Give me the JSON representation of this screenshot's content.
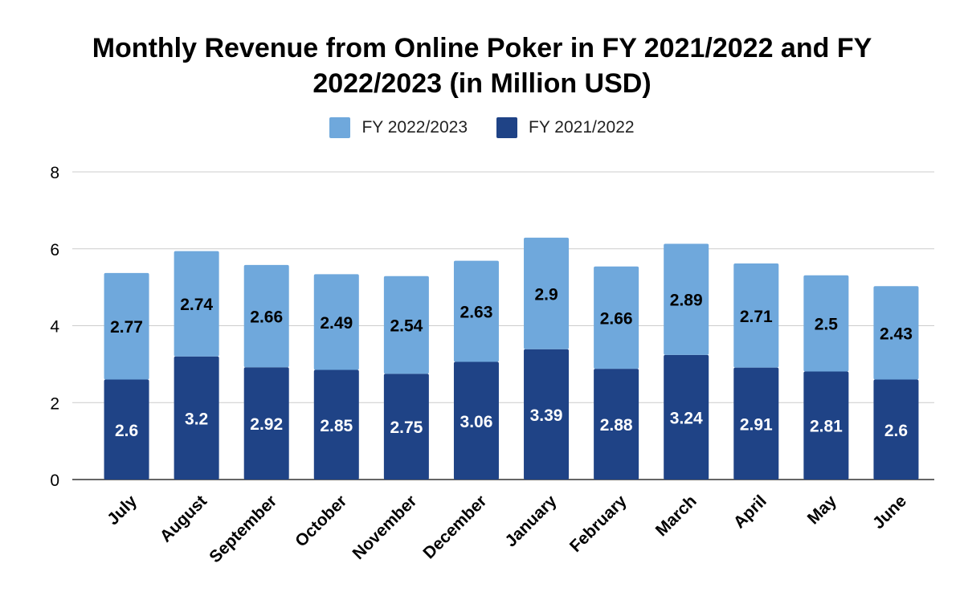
{
  "chart_data": {
    "type": "bar",
    "stacked": true,
    "title_lines": [
      "Monthly Revenue from Online Poker in FY 2021/2022 and FY",
      "2022/2023 (in Million USD)"
    ],
    "categories": [
      "July",
      "August",
      "September",
      "October",
      "November",
      "December",
      "January",
      "February",
      "March",
      "April",
      "May",
      "June"
    ],
    "series": [
      {
        "name": "FY 2021/2022",
        "color": "#1f4386",
        "label_color": "#ffffff",
        "values": [
          2.6,
          3.2,
          2.92,
          2.85,
          2.75,
          3.06,
          3.39,
          2.88,
          3.24,
          2.91,
          2.81,
          2.6
        ]
      },
      {
        "name": "FY 2022/2023",
        "color": "#6fa8dc",
        "label_color": "#000000",
        "values": [
          2.77,
          2.74,
          2.66,
          2.49,
          2.54,
          2.63,
          2.9,
          2.66,
          2.89,
          2.71,
          2.5,
          2.43
        ]
      }
    ],
    "legend_order": [
      "FY 2022/2023",
      "FY 2021/2022"
    ],
    "legend_position": "top",
    "ylim": [
      0,
      8
    ],
    "yticks": [
      0,
      2,
      4,
      6,
      8
    ],
    "grid": true,
    "xlabel": "",
    "ylabel": ""
  }
}
